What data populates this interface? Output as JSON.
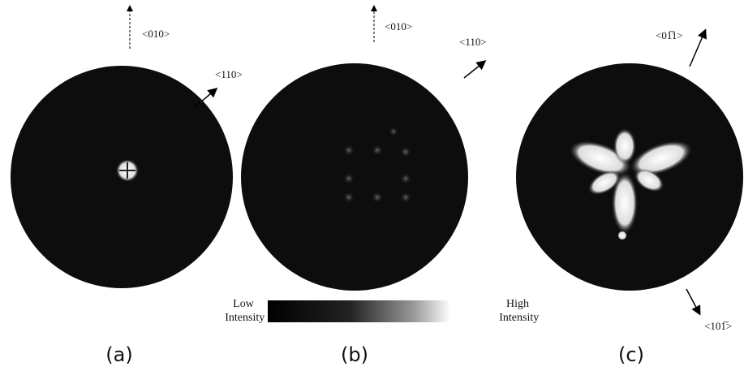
{
  "panels": [
    {
      "label": "(a)",
      "directions": [
        "<010>",
        "<110>"
      ]
    },
    {
      "label": "(b)",
      "directions": [
        "<010>",
        "<110>"
      ]
    },
    {
      "label": "(c)",
      "directions": [
        "<01̅1>",
        "<101̅>"
      ]
    }
  ],
  "colorbar": {
    "low": "Low Intensity",
    "high": "High Intensity"
  }
}
